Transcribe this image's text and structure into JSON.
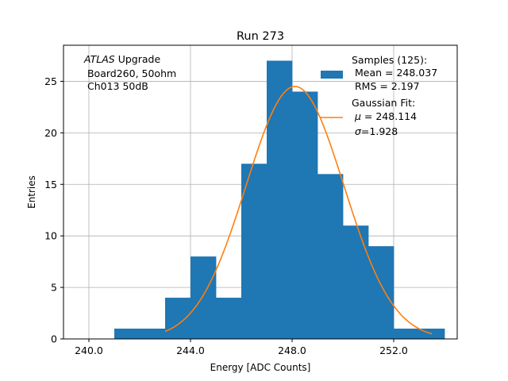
{
  "chart_data": {
    "type": "bar",
    "title": "Run 273",
    "xlabel": "Energy [ADC Counts]",
    "ylabel": "Entries",
    "xlim": [
      239.0,
      254.5
    ],
    "ylim": [
      0,
      28.5
    ],
    "xticks": [
      240.0,
      244.0,
      248.0,
      252.0
    ],
    "xtick_labels": [
      "240.0",
      "244.0",
      "248.0",
      "252.0"
    ],
    "yticks": [
      0,
      5,
      10,
      15,
      20,
      25
    ],
    "ytick_labels": [
      "0",
      "5",
      "10",
      "15",
      "20",
      "25"
    ],
    "grid": true,
    "bin_edges": [
      241.0,
      242.0,
      243.0,
      244.0,
      245.0,
      246.0,
      247.0,
      248.0,
      249.0,
      250.0,
      251.0,
      252.0,
      253.0,
      254.0
    ],
    "counts": [
      1,
      1,
      4,
      8,
      4,
      17,
      27,
      24,
      16,
      11,
      9,
      1,
      1
    ],
    "bar_color": "#1f77b4",
    "fit": {
      "mu": 248.114,
      "sigma": 1.928,
      "amplitude": 24.5,
      "x_range": [
        243.0,
        253.5
      ],
      "color": "#ff7f0e"
    },
    "annotation": {
      "italic": "ATLAS",
      "rest": " Upgrade",
      "line2": " Board260, 50ohm",
      "line3": " Ch013 50dB"
    },
    "legend": {
      "position": "top-right",
      "samples_title": "Samples (125):",
      "samples_mean": " Mean = 248.037",
      "samples_rms": " RMS = 2.197",
      "fit_title": "Gaussian Fit:",
      "fit_mu_symbol": "μ",
      "fit_mu_text": " = 248.114",
      "fit_sigma_symbol": "σ",
      "fit_sigma_text": "=1.928"
    }
  }
}
